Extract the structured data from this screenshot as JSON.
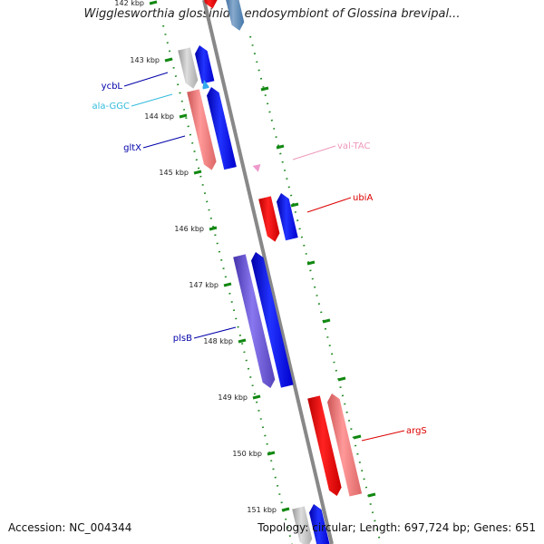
{
  "title": "Wigglesworthia glossinidia endosymbiont of Glossina brevipal...",
  "footer": {
    "accession": "Accession: NC_004344",
    "summary": "Topology: circular; Length: 697,724 bp; Genes: 651"
  },
  "ticks": [
    "142 kbp",
    "143 kbp",
    "144 kbp",
    "145 kbp",
    "146 kbp",
    "147 kbp",
    "148 kbp",
    "149 kbp",
    "150 kbp",
    "151 kbp"
  ],
  "genes": [
    {
      "name": "ycbL",
      "color": "#0000aa"
    },
    {
      "name": "ala-GGC",
      "color": "#33bbdd"
    },
    {
      "name": "gltX",
      "color": "#0000aa"
    },
    {
      "name": "val-TAC",
      "color": "#ee99bb"
    },
    {
      "name": "ubiA",
      "color": "#dd0000"
    },
    {
      "name": "plsB",
      "color": "#0000aa"
    },
    {
      "name": "argS",
      "color": "#dd0000"
    }
  ],
  "colors": {
    "cds_forward": "#0000ee",
    "cds_reverse_red": "#ee0000",
    "cds_pink": "#ee7777",
    "cds_purple": "#6655cc",
    "cds_gray": "#aaaaaa",
    "trna_cyan": "#33aaee",
    "trna_pink": "#ee99cc",
    "backbone": "#888888",
    "tick_dots": "#008800"
  }
}
